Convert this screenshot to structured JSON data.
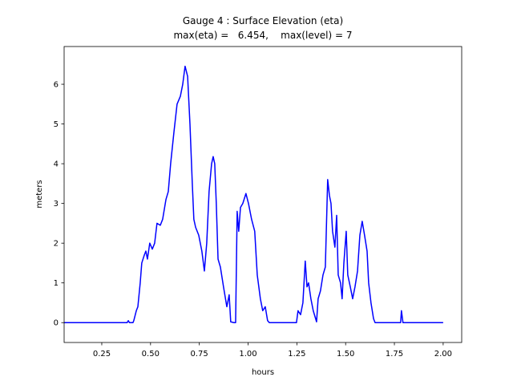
{
  "chart_data": {
    "type": "line",
    "title": "Gauge 4 : Surface Elevation (eta)",
    "subtitle": "max(eta) =   6.454,    max(level) = 7",
    "xlabel": "hours",
    "ylabel": "meters",
    "x": [
      0.057,
      0.38,
      0.386,
      0.392,
      0.41,
      0.414,
      0.427,
      0.435,
      0.447,
      0.455,
      0.468,
      0.476,
      0.484,
      0.496,
      0.509,
      0.521,
      0.533,
      0.55,
      0.562,
      0.579,
      0.591,
      0.603,
      0.62,
      0.636,
      0.653,
      0.665,
      0.677,
      0.69,
      0.702,
      0.714,
      0.722,
      0.731,
      0.747,
      0.763,
      0.776,
      0.788,
      0.8,
      0.813,
      0.821,
      0.829,
      0.837,
      0.846,
      0.858,
      0.874,
      0.891,
      0.903,
      0.911,
      0.928,
      0.936,
      0.944,
      0.952,
      0.961,
      0.973,
      0.989,
      1.002,
      1.018,
      1.034,
      1.047,
      1.063,
      1.075,
      1.088,
      1.1,
      1.109,
      1.248,
      1.256,
      1.269,
      1.281,
      1.293,
      1.302,
      1.31,
      1.322,
      1.334,
      1.351,
      1.359,
      1.371,
      1.384,
      1.396,
      1.408,
      1.417,
      1.425,
      1.433,
      1.445,
      1.454,
      1.462,
      1.474,
      1.482,
      1.491,
      1.503,
      1.511,
      1.524,
      1.536,
      1.548,
      1.561,
      1.573,
      1.585,
      1.597,
      1.61,
      1.618,
      1.63,
      1.643,
      1.651,
      1.782,
      1.786,
      1.794,
      2.0
    ],
    "series": [
      {
        "name": "eta",
        "color": "#0000ff",
        "values": [
          0,
          0,
          0.05,
          0,
          0,
          0.05,
          0.3,
          0.4,
          1.0,
          1.5,
          1.7,
          1.8,
          1.6,
          2.0,
          1.85,
          2.0,
          2.5,
          2.45,
          2.6,
          3.1,
          3.3,
          4.0,
          4.8,
          5.5,
          5.7,
          6.0,
          6.454,
          6.2,
          5.0,
          3.5,
          2.6,
          2.4,
          2.2,
          1.8,
          1.3,
          2.0,
          3.3,
          4.0,
          4.18,
          4.0,
          3.0,
          1.6,
          1.4,
          0.9,
          0.4,
          0.7,
          0.02,
          0,
          0,
          2.8,
          2.3,
          2.9,
          3.0,
          3.25,
          3.0,
          2.6,
          2.3,
          1.2,
          0.6,
          0.3,
          0.4,
          0.05,
          0,
          0,
          0.3,
          0.2,
          0.5,
          1.55,
          0.9,
          1.0,
          0.6,
          0.3,
          0.02,
          0.6,
          0.8,
          1.2,
          1.4,
          3.6,
          3.2,
          3.0,
          2.3,
          1.9,
          2.7,
          1.2,
          1.0,
          0.6,
          1.5,
          2.3,
          1.2,
          0.9,
          0.6,
          0.9,
          1.3,
          2.2,
          2.55,
          2.2,
          1.8,
          1.0,
          0.5,
          0.1,
          0,
          0,
          0.3,
          0,
          0
        ]
      }
    ],
    "xlim": [
      0.057,
      2.095
    ],
    "ylim": [
      -0.5,
      6.95
    ],
    "xticks": [
      0.25,
      {
        "value": 0.5,
        "label": "0.50"
      },
      0.75,
      {
        "value": 1.0,
        "label": "1.00"
      },
      1.25,
      {
        "value": 1.5,
        "label": "1.50"
      },
      1.75,
      {
        "value": 2.0,
        "label": "2.00"
      }
    ],
    "yticks": [
      0,
      1,
      2,
      3,
      4,
      5,
      6
    ],
    "grid": false
  }
}
